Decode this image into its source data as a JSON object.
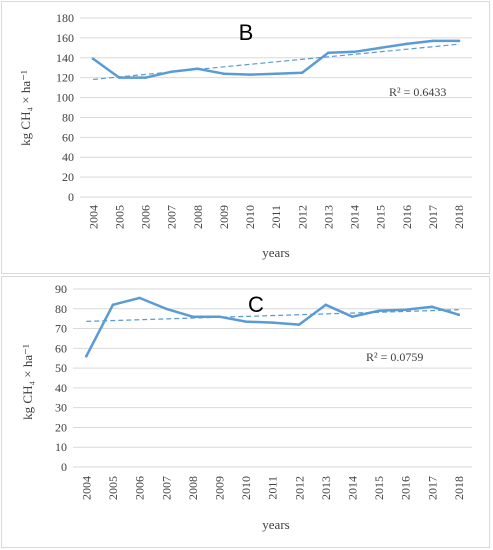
{
  "colors": {
    "series": "#5b9bd5",
    "grid": "#d9d9d9",
    "text": "#404040"
  },
  "chart_data": [
    {
      "type": "line",
      "panel_label": "B",
      "ylabel": "kg CH₄ × ha⁻¹",
      "xlabel": "years",
      "x": [
        "2004",
        "2005",
        "2006",
        "2007",
        "2008",
        "2009",
        "2010",
        "2011",
        "2012",
        "2013",
        "2014",
        "2015",
        "2016",
        "2017",
        "2018"
      ],
      "series": [
        {
          "values": [
            139,
            120,
            120,
            126,
            129,
            124,
            123,
            124,
            125,
            145,
            146,
            150,
            154,
            157,
            157
          ]
        }
      ],
      "trendline": {
        "type": "linear",
        "dashed": true,
        "r2_label": "R² = 0.6433"
      },
      "ylim": [
        0,
        180
      ],
      "yticks": [
        0,
        20,
        40,
        60,
        80,
        100,
        120,
        140,
        160,
        180
      ],
      "grid": true
    },
    {
      "type": "line",
      "panel_label": "C",
      "ylabel": "kg CH₄ × ha⁻¹",
      "xlabel": "years",
      "x": [
        "2004",
        "2005",
        "2006",
        "2007",
        "2008",
        "2009",
        "2010",
        "2011",
        "2012",
        "2013",
        "2014",
        "2015",
        "2016",
        "2017",
        "2018"
      ],
      "series": [
        {
          "values": [
            56,
            82,
            85.5,
            80,
            76,
            76,
            73.5,
            73,
            72,
            82,
            76,
            79,
            79.5,
            81,
            77
          ]
        }
      ],
      "trendline": {
        "type": "linear",
        "dashed": true,
        "r2_label": "R² = 0.0759"
      },
      "ylim": [
        0,
        90
      ],
      "yticks": [
        0,
        10,
        20,
        30,
        40,
        50,
        60,
        70,
        80,
        90
      ],
      "grid": true
    }
  ]
}
